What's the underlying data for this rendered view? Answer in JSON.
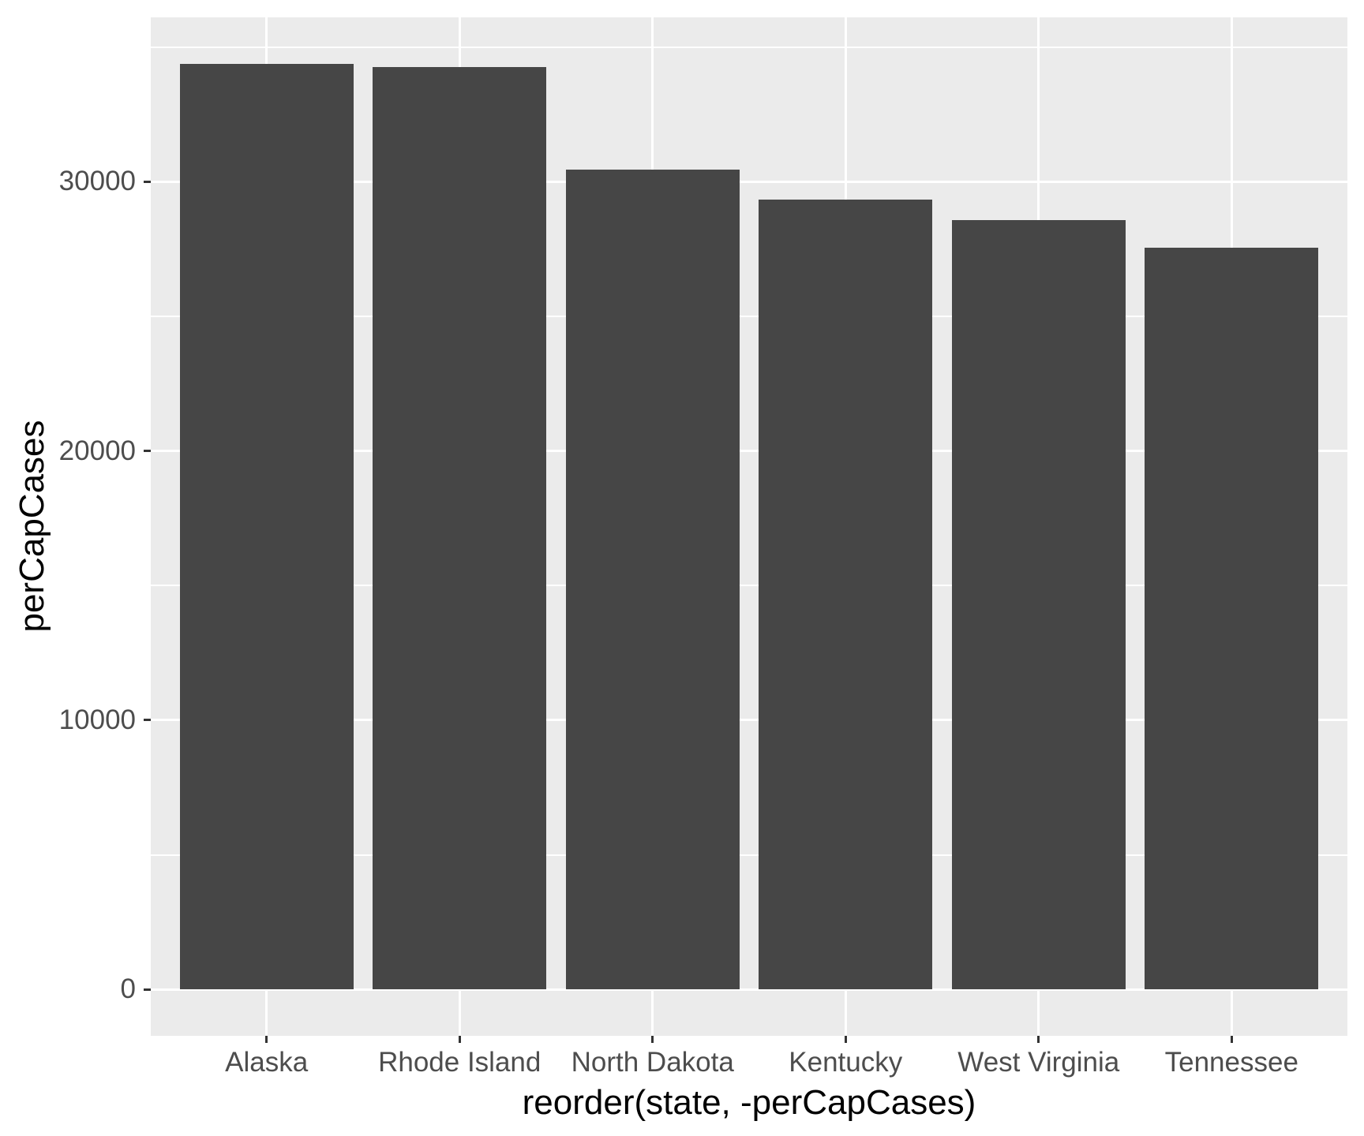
{
  "chart_data": {
    "type": "bar",
    "title": "",
    "categories": [
      "Alaska",
      "Rhode Island",
      "North Dakota",
      "Kentucky",
      "West Virginia",
      "Tennessee"
    ],
    "values": [
      34360,
      34270,
      30450,
      29340,
      28570,
      27540
    ],
    "xlabel": "reorder(state, -perCapCases)",
    "ylabel": "perCapCases",
    "y_ticks": [
      0,
      10000,
      20000,
      30000
    ],
    "y_tick_labels": [
      "0",
      "10000",
      "20000",
      "30000"
    ],
    "y_minor_ticks": [
      5000,
      15000,
      25000,
      35000
    ],
    "y_range": [
      -1718,
      36101
    ],
    "x_band": {
      "range_units": 6.2,
      "first_center_unit": 0.6,
      "bar_width_units": 0.9
    },
    "grid": true,
    "legend": "none",
    "colors": {
      "bar_fill": "#464646",
      "panel_bg": "#EBEBEB",
      "grid_major": "#FFFFFF",
      "grid_minor": "#FFFFFF",
      "tick_mark": "#333333",
      "tick_label": "#4D4D4D",
      "axis_title": "#000000",
      "page_bg": "#FFFFFF"
    }
  }
}
